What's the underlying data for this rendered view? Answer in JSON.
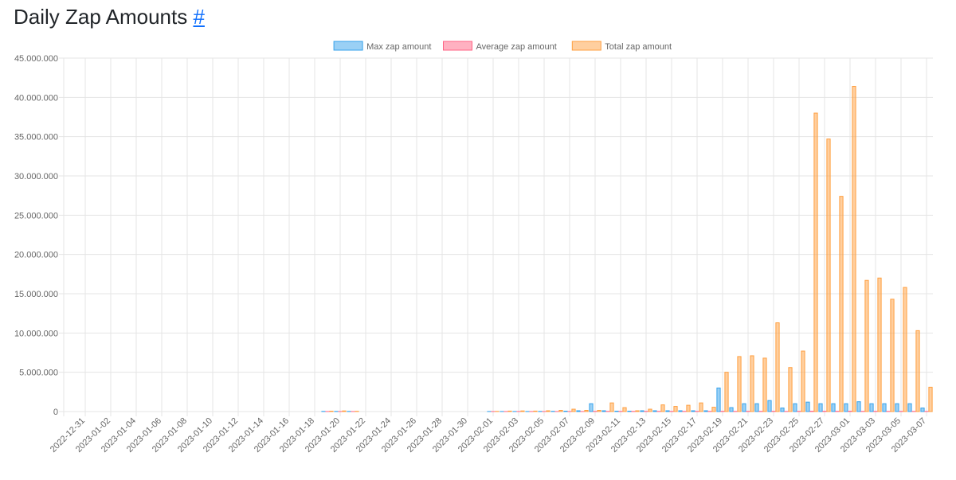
{
  "chart_data": {
    "type": "bar",
    "title": "Daily Zap Amounts",
    "title_link": "#",
    "categories": [
      "2022-12-31",
      null,
      "2023-01-02",
      null,
      "2023-01-04",
      null,
      "2023-01-06",
      null,
      "2023-01-08",
      null,
      "2023-01-10",
      null,
      "2023-01-12",
      null,
      "2023-01-14",
      null,
      "2023-01-16",
      null,
      "2023-01-18",
      null,
      "2023-01-20",
      null,
      "2023-01-22",
      null,
      "2023-01-24",
      null,
      "2023-01-26",
      null,
      "2023-01-28",
      null,
      "2023-01-30",
      null,
      "2023-02-01",
      null,
      "2023-02-03",
      null,
      "2023-02-05",
      null,
      "2023-02-07",
      null,
      "2023-02-09",
      null,
      "2023-02-11",
      null,
      "2023-02-13",
      null,
      "2023-02-15",
      null,
      "2023-02-17",
      null,
      "2023-02-19",
      null,
      "2023-02-21",
      null,
      "2023-02-23",
      null,
      "2023-02-25",
      null,
      "2023-02-27",
      null,
      "2023-03-01",
      null,
      "2023-03-03",
      null,
      "2023-03-05",
      null,
      "2023-03-07"
    ],
    "series": [
      {
        "name": "Max zap amount",
        "color": "rgba(54,162,235,0.5)",
        "border_color": "rgb(54,162,235)",
        "values": [
          0,
          0,
          0,
          0,
          0,
          0,
          0,
          0,
          0,
          0,
          0,
          0,
          0,
          0,
          0,
          0,
          0,
          0,
          0,
          20000,
          20000,
          20000,
          0,
          0,
          0,
          0,
          0,
          0,
          0,
          0,
          0,
          0,
          10000,
          10000,
          10000,
          10000,
          20000,
          30000,
          50000,
          100000,
          1000000,
          100000,
          50000,
          50000,
          100000,
          100000,
          100000,
          100000,
          100000,
          100000,
          3000000,
          500000,
          1000000,
          1000000,
          1400000,
          450000,
          1000000,
          1200000,
          1000000,
          1000000,
          1000000,
          1250000,
          1000000,
          1000000,
          1000000,
          1000000,
          450000
        ]
      },
      {
        "name": "Average zap amount",
        "color": "rgba(255,99,132,0.5)",
        "border_color": "rgb(255,99,132)",
        "values": [
          0,
          0,
          0,
          0,
          0,
          0,
          0,
          0,
          0,
          0,
          0,
          0,
          0,
          0,
          0,
          0,
          0,
          0,
          0,
          5000,
          5000,
          5000,
          0,
          0,
          0,
          0,
          0,
          0,
          0,
          0,
          0,
          0,
          5000,
          5000,
          5000,
          5000,
          5000,
          5000,
          5000,
          5000,
          20000,
          20000,
          20000,
          20000,
          20000,
          20000,
          20000,
          20000,
          20000,
          20000,
          30000,
          20000,
          25000,
          25000,
          30000,
          15000,
          25000,
          40000,
          35000,
          30000,
          40000,
          25000,
          25000,
          20000,
          22000,
          20000,
          15000
        ]
      },
      {
        "name": "Total zap amount",
        "color": "rgba(255,159,64,0.5)",
        "border_color": "rgb(255,159,64)",
        "values": [
          0,
          0,
          0,
          0,
          0,
          0,
          0,
          0,
          0,
          0,
          0,
          0,
          0,
          0,
          0,
          0,
          0,
          0,
          0,
          50000,
          80000,
          30000,
          0,
          0,
          0,
          0,
          0,
          0,
          0,
          0,
          0,
          0,
          20000,
          60000,
          80000,
          60000,
          100000,
          150000,
          300000,
          150000,
          150000,
          1100000,
          500000,
          100000,
          300000,
          850000,
          650000,
          800000,
          1100000,
          550000,
          5000000,
          7000000,
          7100000,
          6800000,
          11300000,
          5600000,
          7700000,
          38000000,
          34700000,
          27400000,
          41400000,
          16700000,
          17000000,
          14300000,
          15800000,
          10300000,
          3100000
        ]
      }
    ],
    "ylim": [
      0,
      45000000
    ],
    "yticks": [
      0,
      {
        "value": 5000000,
        "label": "5.000.000"
      },
      {
        "value": 10000000,
        "label": "10.000.000"
      },
      {
        "value": 15000000,
        "label": "15.000.000"
      },
      {
        "value": 20000000,
        "label": "20.000.000"
      },
      {
        "value": 25000000,
        "label": "25.000.000"
      },
      {
        "value": 30000000,
        "label": "30.000.000"
      },
      {
        "value": 35000000,
        "label": "35.000.000"
      },
      {
        "value": 40000000,
        "label": "40.000.000"
      },
      {
        "value": 45000000,
        "label": "45.000.000"
      }
    ],
    "grid": true,
    "legend": "top"
  }
}
